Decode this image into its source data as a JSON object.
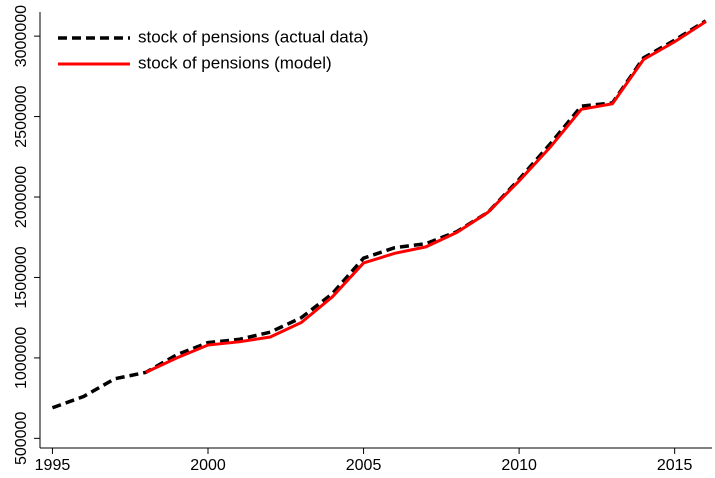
{
  "chart_data": {
    "type": "line",
    "x": [
      1995,
      1996,
      1997,
      1998,
      1999,
      2000,
      2001,
      2002,
      2003,
      2004,
      2005,
      2006,
      2007,
      2008,
      2009,
      2010,
      2011,
      2012,
      2013,
      2014,
      2015,
      2016
    ],
    "series": [
      {
        "name": "stock of pensions (actual data)",
        "color": "#000000",
        "dash": true,
        "values": [
          690000,
          760000,
          870000,
          910000,
          1020000,
          1095000,
          1115000,
          1160000,
          1250000,
          1400000,
          1620000,
          1685000,
          1710000,
          1785000,
          1905000,
          2110000,
          2330000,
          2565000,
          2585000,
          2865000,
          2975000,
          3095000
        ]
      },
      {
        "name": "stock of pensions (model)",
        "color": "#ff0000",
        "dash": false,
        "values": [
          null,
          null,
          null,
          910000,
          1000000,
          1080000,
          1100000,
          1130000,
          1220000,
          1380000,
          1590000,
          1650000,
          1690000,
          1780000,
          1905000,
          2100000,
          2310000,
          2545000,
          2580000,
          2855000,
          2965000,
          3090000
        ]
      }
    ],
    "xlim": [
      1994.6,
      2016.2
    ],
    "xticks": [
      1995,
      2000,
      2005,
      2010,
      2015
    ],
    "ylim": [
      440000,
      3150000
    ],
    "yticks": [
      500000,
      1000000,
      1500000,
      2000000,
      2500000,
      3000000
    ],
    "legend": "top-left"
  }
}
